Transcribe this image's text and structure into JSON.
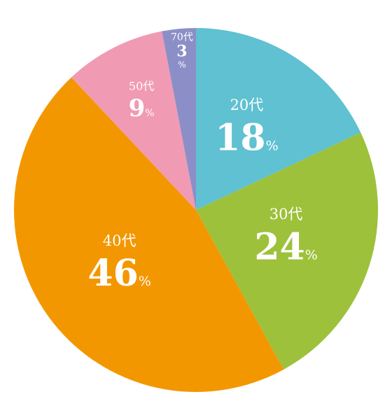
{
  "chart_data": {
    "type": "pie",
    "title": "",
    "categories": [
      "20代",
      "30代",
      "40代",
      "50代",
      "70代"
    ],
    "values": [
      18,
      24,
      46,
      9,
      3
    ],
    "unit": "%",
    "colors": [
      "#5fc1d1",
      "#9dc13a",
      "#f39700",
      "#f19ab4",
      "#8c8fc7"
    ],
    "start": "12 o'clock",
    "direction": "clockwise",
    "legend": "none"
  }
}
